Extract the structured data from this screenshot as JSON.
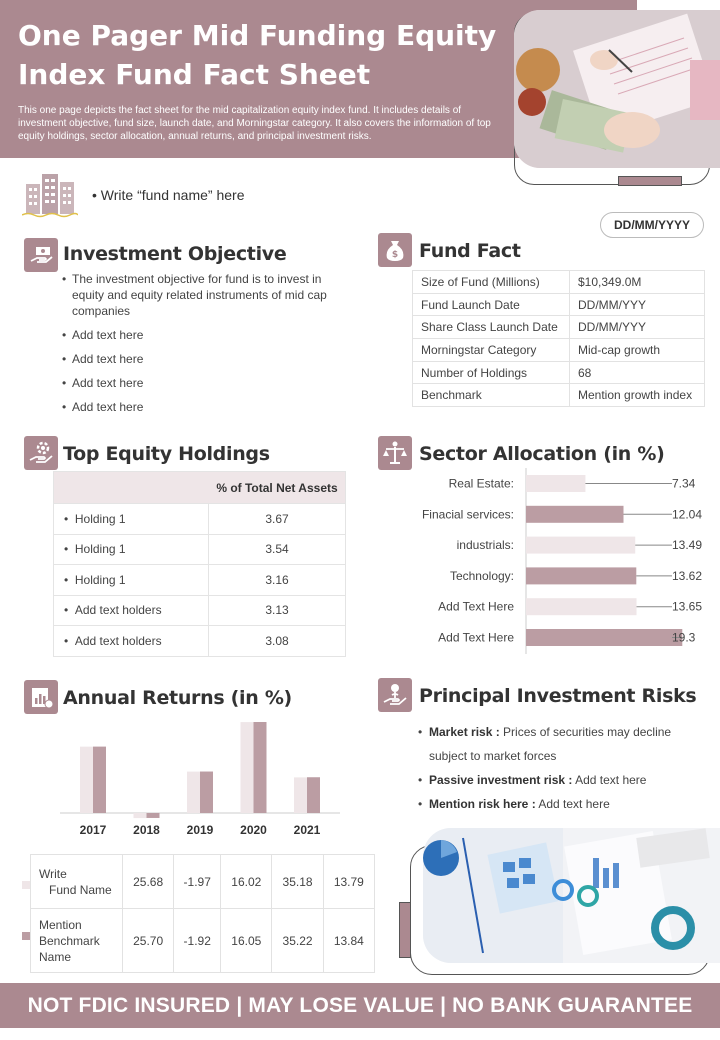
{
  "header": {
    "title_line1": "One Pager Mid Funding Equity",
    "title_line2": "Index Fund Fact Sheet",
    "description": "This one page depicts the fact sheet for the mid capitalization  equity index fund. It includes details of investment objective, fund size, launch date, and Morningstar  category. It also covers the information of top equity holdings, sector allocation,  annual returns, and principal  investment risks."
  },
  "fund_name": "• Write “fund name” here",
  "date": "DD/MM/YYYY",
  "investment_objective": {
    "title": "Investment Objective",
    "items": [
      "The investment objective for fund is to invest in equity and equity related instruments of mid cap companies",
      "Add text here",
      "Add text here",
      "Add text here",
      "Add text here"
    ]
  },
  "fund_fact": {
    "title": "Fund Fact",
    "rows": [
      {
        "label": "Size of Fund (Millions)",
        "value": "$10,349.0M"
      },
      {
        "label": "Fund Launch Date",
        "value": "DD/MM/YYY"
      },
      {
        "label": "Share Class Launch Date",
        "value": "DD/MM/YYY"
      },
      {
        "label": "Morningstar Category",
        "value": "Mid-cap growth"
      },
      {
        "label": "Number of Holdings",
        "value": "68"
      },
      {
        "label": "Benchmark",
        "value": "Mention growth index"
      }
    ]
  },
  "top_equity_holdings": {
    "title": "Top Equity Holdings",
    "column_header": "% of Total Net Assets",
    "rows": [
      {
        "name": "Holding 1",
        "value": "3.67"
      },
      {
        "name": "Holding 1",
        "value": "3.54"
      },
      {
        "name": "Holding 1",
        "value": "3.16"
      },
      {
        "name": "Add text holders",
        "value": "3.13"
      },
      {
        "name": "Add text holders",
        "value": "3.08"
      }
    ]
  },
  "annual_returns": {
    "title": "Annual Returns (in %)",
    "rows": [
      {
        "label_line1": "Write",
        "label_line2": "Fund Name",
        "label_line3": "",
        "values": [
          "25.68",
          "-1.97",
          "16.02",
          "35.18",
          "13.79"
        ]
      },
      {
        "label_line1": "Mention",
        "label_line2": "Benchmark",
        "label_line3": "Name",
        "values": [
          "25.70",
          "-1.92",
          "16.05",
          "35.22",
          "13.84"
        ]
      }
    ]
  },
  "principal_risks": {
    "title": "Principal Investment Risks",
    "items": [
      {
        "bold": "Market risk :",
        "text": " Prices of securities may decline subject to market forces"
      },
      {
        "bold": "Passive investment risk :",
        "text": " Add text here"
      },
      {
        "bold": "Mention risk here :",
        "text": " Add text here"
      }
    ]
  },
  "footer": "NOT FDIC INSURED | MAY LOSE VALUE | NO BANK GUARANTEE",
  "colors": {
    "accent": "#ab8990",
    "light": "#efe6e8",
    "mid": "#bb9da3"
  },
  "icons": [
    "buildings-icon",
    "hand-money-icon",
    "money-bag-icon",
    "hand-gear-icon",
    "scale-person-icon",
    "report-icon",
    "hand-plant-icon"
  ],
  "chart_data": [
    {
      "type": "bar",
      "title": "Sector Allocation (in %)",
      "categories": [
        "Real Estate:",
        "Finacial services:",
        "industrials:",
        "Technology:",
        "Add Text Here",
        "Add Text Here"
      ],
      "values": [
        7.34,
        12.04,
        13.49,
        13.62,
        13.65,
        19.3
      ],
      "value_labels": [
        "7.34",
        "12.04",
        "13.49",
        "13.62",
        "13.65",
        "19.3"
      ],
      "xlim": [
        0,
        20.5
      ],
      "grid": false,
      "orientation": "horizontal"
    },
    {
      "type": "bar",
      "title": "Annual Returns (in %)",
      "categories": [
        "2017",
        "2018",
        "2019",
        "2020",
        "2021"
      ],
      "series": [
        {
          "values": [
            25.68,
            -1.97,
            16.02,
            35.18,
            13.79
          ]
        },
        {
          "values": [
            25.7,
            -1.92,
            16.05,
            35.22,
            13.84
          ]
        }
      ],
      "ylim": [
        -2.5,
        35.5
      ],
      "grid": false
    }
  ]
}
